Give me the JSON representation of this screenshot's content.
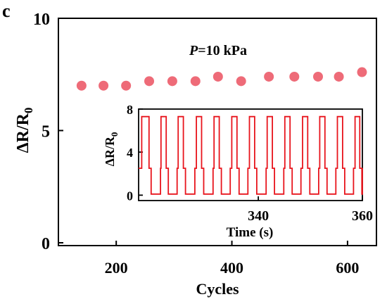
{
  "panel_label": "c",
  "chart_data": [
    {
      "type": "scatter",
      "annotation_var": "P",
      "annotation_rest": "=10 kPa",
      "ylabel_main": "ΔR/R",
      "ylabel_sub": "0",
      "xlabel": "Cycles",
      "xlim": [
        100,
        650
      ],
      "ylim": [
        0,
        10
      ],
      "x_ticks": [
        200,
        400,
        600
      ],
      "y_ticks": [
        0,
        5,
        10
      ],
      "marker_color": "#ee6b78",
      "series": [
        {
          "x": [
            140,
            178,
            217,
            257,
            297,
            337,
            376,
            416,
            464,
            508,
            549,
            585,
            625
          ],
          "y": [
            7.0,
            7.0,
            7.0,
            7.2,
            7.2,
            7.2,
            7.4,
            7.2,
            7.4,
            7.4,
            7.4,
            7.4,
            7.6
          ]
        }
      ]
    },
    {
      "type": "line",
      "xlabel": "Time (s)",
      "ylabel_main": "ΔR/R",
      "ylabel_sub": "0",
      "xlim": [
        317,
        360
      ],
      "ylim": [
        -0.5,
        8
      ],
      "x_ticks": [
        340,
        360
      ],
      "y_ticks": [
        0,
        4,
        8
      ],
      "line_color": "#e8141c",
      "cycles": [
        {
          "start": 317.6,
          "plateau_end": 319.0,
          "low_end": 321.2
        },
        {
          "start": 321.3,
          "plateau_end": 322.3,
          "low_end": 324.4
        },
        {
          "start": 324.6,
          "plateau_end": 325.6,
          "low_end": 327.8
        },
        {
          "start": 328.1,
          "plateau_end": 329.1,
          "low_end": 331.3
        },
        {
          "start": 331.5,
          "plateau_end": 332.5,
          "low_end": 334.6
        },
        {
          "start": 334.9,
          "plateau_end": 335.9,
          "low_end": 338.0
        },
        {
          "start": 338.3,
          "plateau_end": 339.3,
          "low_end": 341.5
        },
        {
          "start": 341.7,
          "plateau_end": 342.7,
          "low_end": 344.9
        },
        {
          "start": 345.1,
          "plateau_end": 346.1,
          "low_end": 348.2
        },
        {
          "start": 348.5,
          "plateau_end": 349.5,
          "low_end": 351.6
        },
        {
          "start": 351.8,
          "plateau_end": 352.8,
          "low_end": 354.9
        },
        {
          "start": 355.2,
          "plateau_end": 356.2,
          "low_end": 358.3
        },
        {
          "start": 358.6,
          "plateau_end": 359.5,
          "low_end": 360.0
        }
      ],
      "high": 7.3,
      "low": 0.1,
      "mid": 2.5
    }
  ]
}
